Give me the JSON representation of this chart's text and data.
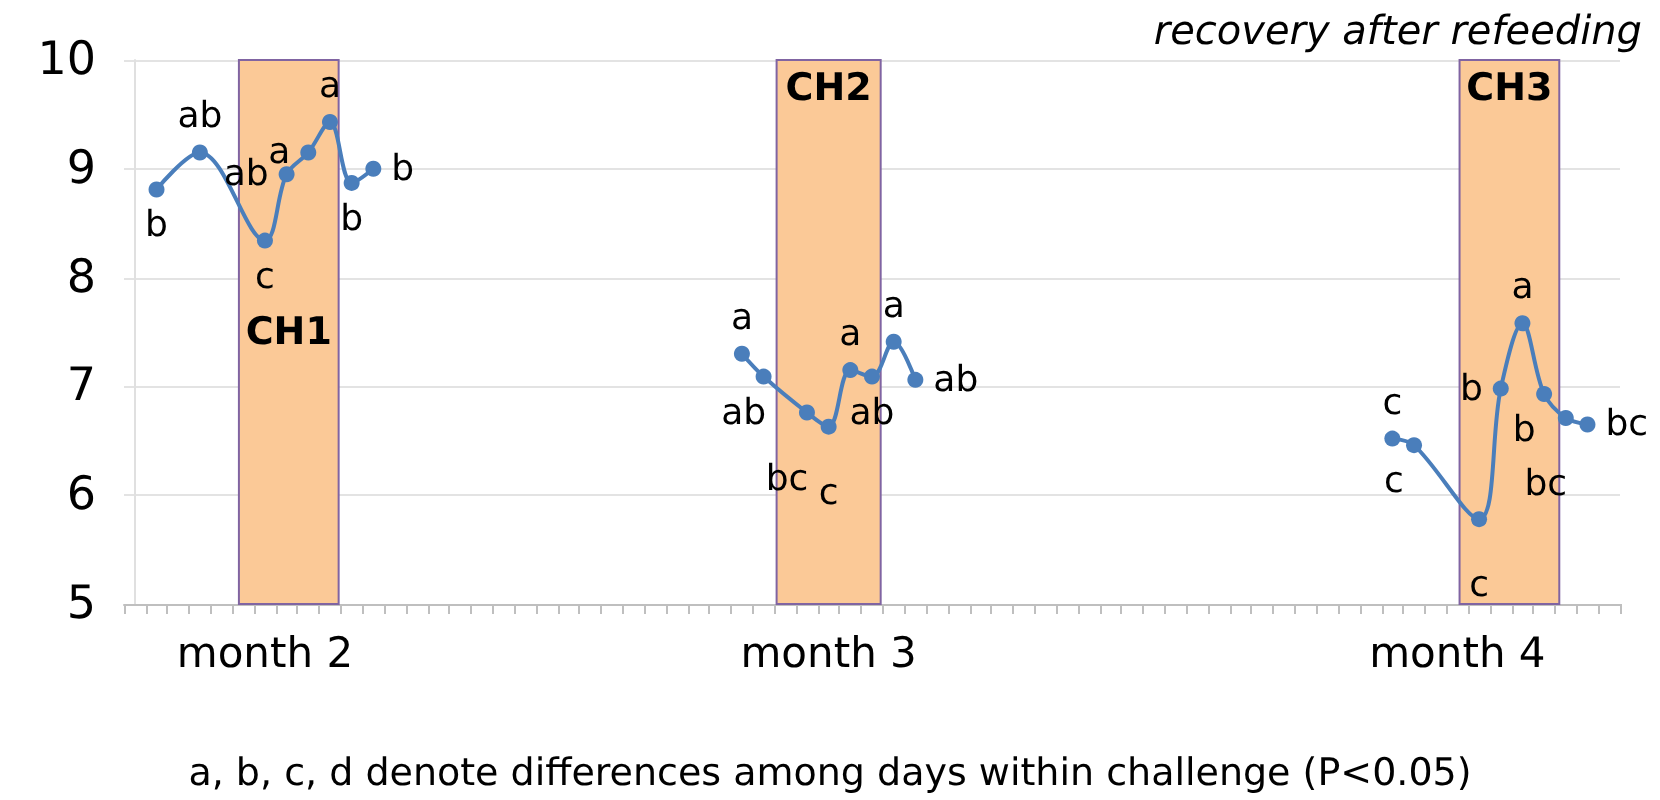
{
  "chart_data": {
    "type": "line",
    "title": "recovery after refeeding",
    "annotations": [
      "a, b, c, d denote differences among days within challenge (P<0.05)",
      "CH1",
      "CH2",
      "CH3"
    ],
    "categories": [
      null,
      null,
      null,
      null,
      null,
      null,
      "month 2",
      null,
      null,
      null,
      null,
      null,
      null,
      null,
      null,
      null,
      null,
      null,
      null,
      null,
      null,
      null,
      null,
      null,
      null,
      null,
      null,
      null,
      null,
      null,
      null,
      null,
      "month 3",
      null,
      null,
      null,
      null,
      null,
      null,
      null,
      null,
      null,
      null,
      null,
      null,
      null,
      null,
      null,
      null,
      null,
      null,
      null,
      null,
      null,
      null,
      null,
      null,
      null,
      null,
      null,
      null,
      "month 4",
      null,
      null,
      null,
      null,
      null,
      null,
      null
    ],
    "series": [
      {
        "color": "#4a7ebb",
        "values": [
          null,
          8.81,
          null,
          9.15,
          null,
          null,
          8.34,
          8.95,
          9.15,
          9.43,
          8.87,
          9.0,
          null,
          null,
          null,
          null,
          null,
          null,
          null,
          null,
          null,
          null,
          null,
          null,
          null,
          null,
          null,
          null,
          null,
          null,
          null,
          null,
          null,
          null,
          null,
          null,
          null,
          null,
          null,
          null,
          null,
          null,
          null,
          null,
          null,
          null,
          null,
          null,
          null,
          null,
          null,
          null,
          null,
          null,
          null,
          null,
          null,
          null,
          null,
          null,
          null,
          null,
          null,
          null,
          null,
          null,
          null,
          null,
          null
        ],
        "value_labels": [
          null,
          "b",
          null,
          "ab",
          null,
          null,
          "c",
          "ab",
          "a",
          "a",
          "b",
          "b",
          null,
          null,
          null,
          null,
          null,
          null,
          null,
          null,
          null,
          null,
          null,
          null,
          null,
          null,
          null,
          null,
          null,
          null,
          null,
          null,
          null,
          null,
          null,
          null,
          null,
          null,
          null,
          null,
          null,
          null,
          null,
          null,
          null,
          null,
          null,
          null,
          null,
          null,
          null,
          null,
          null,
          null,
          null,
          null,
          null,
          null,
          null,
          null,
          null,
          null,
          null,
          null,
          null,
          null,
          null,
          null,
          null
        ]
      },
      {
        "color": "#4a7ebb",
        "values": [
          null,
          null,
          null,
          null,
          null,
          null,
          null,
          null,
          null,
          null,
          null,
          null,
          null,
          null,
          null,
          null,
          null,
          null,
          null,
          null,
          null,
          null,
          null,
          null,
          null,
          null,
          null,
          null,
          7.3,
          7.09,
          null,
          6.76,
          6.63,
          7.15,
          7.09,
          7.41,
          7.06,
          null,
          null,
          null,
          null,
          null,
          null,
          null,
          null,
          null,
          null,
          null,
          null,
          null,
          null,
          null,
          null,
          null,
          null,
          null,
          null,
          null,
          null,
          null,
          null,
          null,
          null,
          null,
          null,
          null,
          null,
          null,
          null
        ],
        "value_labels": [
          null,
          null,
          null,
          null,
          null,
          null,
          null,
          null,
          null,
          null,
          null,
          null,
          null,
          null,
          null,
          null,
          null,
          null,
          null,
          null,
          null,
          null,
          null,
          null,
          null,
          null,
          null,
          null,
          "a",
          "ab",
          null,
          "bc",
          "c",
          "a",
          "ab",
          "a",
          "ab",
          null,
          null,
          null,
          null,
          null,
          null,
          null,
          null,
          null,
          null,
          null,
          null,
          null,
          null,
          null,
          null,
          null,
          null,
          null,
          null,
          null,
          null,
          null,
          null,
          null,
          null,
          null,
          null,
          null,
          null,
          null,
          null
        ]
      },
      {
        "color": "#4a7ebb",
        "values": [
          null,
          null,
          null,
          null,
          null,
          null,
          null,
          null,
          null,
          null,
          null,
          null,
          null,
          null,
          null,
          null,
          null,
          null,
          null,
          null,
          null,
          null,
          null,
          null,
          null,
          null,
          null,
          null,
          null,
          null,
          null,
          null,
          null,
          null,
          null,
          null,
          null,
          null,
          null,
          null,
          null,
          null,
          null,
          null,
          null,
          null,
          null,
          null,
          null,
          null,
          null,
          null,
          null,
          null,
          null,
          null,
          null,
          null,
          6.52,
          6.46,
          null,
          null,
          5.78,
          6.98,
          7.58,
          6.93,
          6.71,
          6.65,
          null
        ],
        "value_labels": [
          null,
          null,
          null,
          null,
          null,
          null,
          null,
          null,
          null,
          null,
          null,
          null,
          null,
          null,
          null,
          null,
          null,
          null,
          null,
          null,
          null,
          null,
          null,
          null,
          null,
          null,
          null,
          null,
          null,
          null,
          null,
          null,
          null,
          null,
          null,
          null,
          null,
          null,
          null,
          null,
          null,
          null,
          null,
          null,
          null,
          null,
          null,
          null,
          null,
          null,
          null,
          null,
          null,
          null,
          null,
          null,
          null,
          null,
          "c",
          "c",
          null,
          null,
          "c",
          "b",
          "a",
          "b",
          "bc",
          "bc",
          null
        ]
      }
    ],
    "ylim": [
      5,
      10
    ],
    "yticks": [
      5,
      6,
      7,
      8,
      9,
      10
    ],
    "grid": "y",
    "marker": "circle",
    "line_style": "solid"
  }
}
